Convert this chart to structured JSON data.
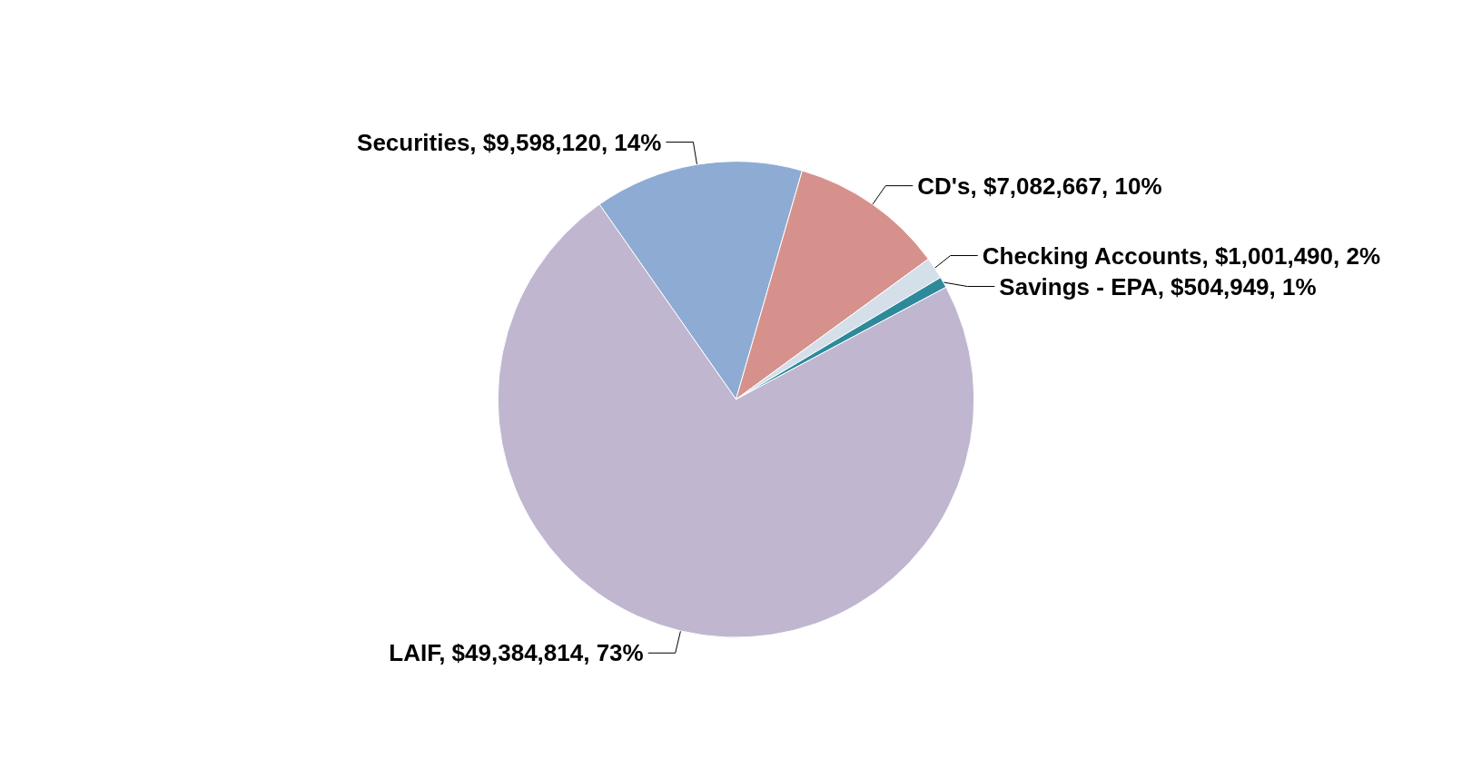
{
  "chart_data": {
    "type": "pie",
    "categories": [
      "Securities",
      "CD's",
      "Checking Accounts",
      "Savings - EPA",
      "LAIF"
    ],
    "values": [
      9598120,
      7082667,
      1001490,
      504949,
      49384814
    ],
    "value_labels": [
      ", $9,598,120, 14%",
      ", $7,082,667, 10%",
      ", $1,001,490, 2%",
      ", $504,949, 1%",
      ", $49,384,814, 73%"
    ],
    "colors": [
      "#8eabd3",
      "#d6918c",
      "#d5dfe9",
      "#2e8a9b",
      "#c0b6d0"
    ],
    "legend": false
  }
}
